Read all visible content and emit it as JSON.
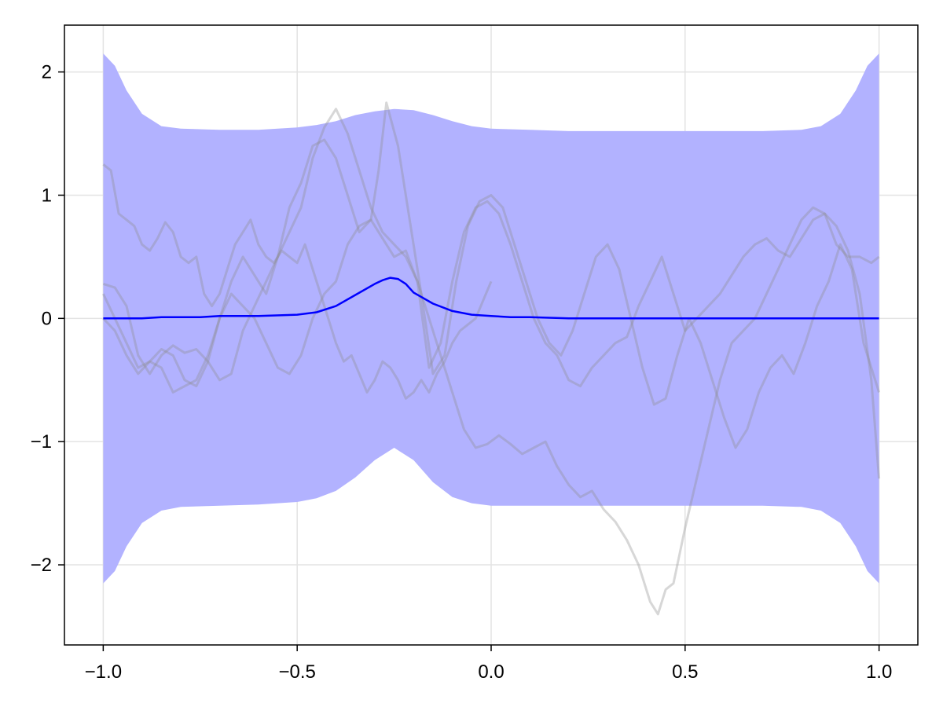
{
  "chart_data": {
    "type": "line",
    "title": "",
    "xlabel": "",
    "ylabel": "",
    "xlim": [
      -1.1,
      1.1
    ],
    "ylim": [
      -2.65,
      2.38
    ],
    "grid": true,
    "x_ticks": [
      -1.0,
      -0.5,
      0.0,
      0.5,
      1.0
    ],
    "x_tick_labels": [
      "−1.0",
      "−0.5",
      "0.0",
      "0.5",
      "1.0"
    ],
    "y_ticks": [
      -2,
      -1,
      0,
      1,
      2
    ],
    "y_tick_labels": [
      "−2",
      "−1",
      "0",
      "1",
      "2"
    ],
    "colors": {
      "mean": "#0000ff",
      "band": "#b2b2ff",
      "samples": "#8c8c8c",
      "grid": "#e3e3e3",
      "axis": "#000000"
    },
    "band": {
      "x": [
        -1.0,
        -0.97,
        -0.94,
        -0.9,
        -0.85,
        -0.8,
        -0.7,
        -0.6,
        -0.5,
        -0.45,
        -0.4,
        -0.35,
        -0.3,
        -0.25,
        -0.2,
        -0.15,
        -0.1,
        -0.05,
        0.0,
        0.1,
        0.2,
        0.3,
        0.4,
        0.5,
        0.6,
        0.7,
        0.8,
        0.85,
        0.9,
        0.94,
        0.97,
        1.0
      ],
      "upper": [
        2.15,
        2.05,
        1.85,
        1.66,
        1.56,
        1.54,
        1.53,
        1.53,
        1.55,
        1.57,
        1.6,
        1.65,
        1.68,
        1.7,
        1.69,
        1.65,
        1.6,
        1.56,
        1.54,
        1.53,
        1.52,
        1.52,
        1.52,
        1.52,
        1.52,
        1.52,
        1.53,
        1.56,
        1.66,
        1.85,
        2.05,
        2.15
      ],
      "lower": [
        -2.15,
        -2.05,
        -1.85,
        -1.66,
        -1.56,
        -1.53,
        -1.52,
        -1.51,
        -1.49,
        -1.46,
        -1.4,
        -1.29,
        -1.15,
        -1.05,
        -1.15,
        -1.33,
        -1.45,
        -1.5,
        -1.52,
        -1.52,
        -1.52,
        -1.52,
        -1.52,
        -1.52,
        -1.52,
        -1.52,
        -1.53,
        -1.56,
        -1.66,
        -1.85,
        -2.05,
        -2.15
      ]
    },
    "series": [
      {
        "x": [
          -1.0,
          -0.95,
          -0.9,
          -0.85,
          -0.8,
          -0.75,
          -0.7,
          -0.6,
          -0.5,
          -0.45,
          -0.4,
          -0.35,
          -0.3,
          -0.28,
          -0.26,
          -0.24,
          -0.22,
          -0.2,
          -0.15,
          -0.1,
          -0.05,
          0.0,
          0.05,
          0.1,
          0.2,
          0.3,
          0.4,
          0.5,
          0.6,
          0.7,
          0.8,
          0.9,
          1.0
        ],
        "y": [
          0.0,
          0.0,
          0.0,
          0.01,
          0.01,
          0.01,
          0.02,
          0.02,
          0.03,
          0.05,
          0.1,
          0.19,
          0.28,
          0.31,
          0.33,
          0.32,
          0.28,
          0.21,
          0.12,
          0.06,
          0.03,
          0.02,
          0.01,
          0.01,
          0.0,
          0.0,
          0.0,
          0.0,
          0.0,
          0.0,
          0.0,
          0.0,
          0.0
        ]
      },
      {
        "x": [
          -1.0,
          -0.98,
          -0.96,
          -0.94,
          -0.92,
          -0.9,
          -0.88,
          -0.86,
          -0.84,
          -0.82,
          -0.8,
          -0.78,
          -0.76,
          -0.74,
          -0.72,
          -0.7,
          -0.68,
          -0.66,
          -0.64,
          -0.62,
          -0.6,
          -0.58,
          -0.56,
          -0.54,
          -0.52,
          -0.5,
          -0.48,
          -0.46,
          -0.44,
          -0.42,
          -0.4,
          -0.38,
          -0.36,
          -0.34,
          -0.32,
          -0.3,
          -0.28,
          -0.26,
          -0.24,
          -0.22,
          -0.2,
          -0.18,
          -0.16,
          -0.14,
          -0.12,
          -0.1,
          -0.08,
          -0.06,
          -0.04,
          -0.02,
          0.0
        ],
        "y": [
          1.25,
          1.2,
          0.85,
          0.8,
          0.75,
          0.6,
          0.55,
          0.65,
          0.78,
          0.7,
          0.5,
          0.45,
          0.5,
          0.2,
          0.1,
          0.2,
          0.4,
          0.6,
          0.7,
          0.8,
          0.6,
          0.5,
          0.45,
          0.55,
          0.5,
          0.45,
          0.6,
          0.4,
          0.2,
          0.0,
          -0.2,
          -0.35,
          -0.3,
          -0.45,
          -0.6,
          -0.5,
          -0.35,
          -0.4,
          -0.5,
          -0.65,
          -0.6,
          -0.5,
          -0.6,
          -0.45,
          -0.35,
          -0.2,
          -0.1,
          -0.05,
          0.0,
          0.15,
          0.3
        ]
      },
      {
        "x": [
          -1.0,
          -0.97,
          -0.94,
          -0.91,
          -0.88,
          -0.85,
          -0.82,
          -0.79,
          -0.76,
          -0.73,
          -0.7,
          -0.67,
          -0.64,
          -0.61,
          -0.58,
          -0.55,
          -0.52,
          -0.49,
          -0.46,
          -0.43,
          -0.4,
          -0.37,
          -0.34,
          -0.31,
          -0.28,
          -0.25,
          -0.22,
          -0.19,
          -0.16,
          -0.13,
          -0.1,
          -0.07,
          -0.04,
          -0.01,
          0.02,
          0.05,
          0.08,
          0.11,
          0.14,
          0.17,
          0.2,
          0.23,
          0.26,
          0.29,
          0.32,
          0.35,
          0.38,
          0.41,
          0.43,
          0.45,
          0.47,
          0.5,
          0.53,
          0.56,
          0.59,
          0.62,
          0.65,
          0.68,
          0.71,
          0.74,
          0.77,
          0.8,
          0.83,
          0.86,
          0.89,
          0.92,
          0.95,
          0.98,
          1.0
        ],
        "y": [
          0.28,
          0.25,
          0.1,
          -0.3,
          -0.45,
          -0.3,
          -0.22,
          -0.28,
          -0.25,
          -0.35,
          -0.5,
          -0.45,
          -0.1,
          0.1,
          0.3,
          0.5,
          0.7,
          0.9,
          1.3,
          1.55,
          1.7,
          1.5,
          1.2,
          0.9,
          0.7,
          0.6,
          0.5,
          0.3,
          0.0,
          -0.3,
          -0.6,
          -0.9,
          -1.05,
          -1.02,
          -0.95,
          -1.02,
          -1.1,
          -1.05,
          -1.0,
          -1.2,
          -1.35,
          -1.45,
          -1.4,
          -1.55,
          -1.65,
          -1.8,
          -2.0,
          -2.3,
          -2.4,
          -2.2,
          -2.15,
          -1.7,
          -1.3,
          -0.9,
          -0.5,
          -0.2,
          -0.1,
          0.0,
          0.2,
          0.4,
          0.6,
          0.8,
          0.9,
          0.85,
          0.6,
          0.5,
          0.5,
          0.45,
          0.5
        ]
      },
      {
        "x": [
          -1.0,
          -0.97,
          -0.94,
          -0.91,
          -0.88,
          -0.85,
          -0.82,
          -0.79,
          -0.76,
          -0.73,
          -0.7,
          -0.67,
          -0.64,
          -0.61,
          -0.58,
          -0.55,
          -0.52,
          -0.49,
          -0.46,
          -0.43,
          -0.4,
          -0.37,
          -0.34,
          -0.31,
          -0.29,
          -0.27,
          -0.24,
          -0.21,
          -0.18,
          -0.15,
          -0.12,
          -0.09,
          -0.06,
          -0.03,
          0.0,
          0.03,
          0.06,
          0.09,
          0.12,
          0.15,
          0.18,
          0.21,
          0.24,
          0.27,
          0.3,
          0.33,
          0.36,
          0.39,
          0.42,
          0.45,
          0.48,
          0.51,
          0.54,
          0.57,
          0.6,
          0.63,
          0.66,
          0.69,
          0.72,
          0.75,
          0.78,
          0.81,
          0.84,
          0.87,
          0.9,
          0.93,
          0.96,
          1.0
        ],
        "y": [
          0.2,
          0.0,
          -0.2,
          -0.4,
          -0.35,
          -0.25,
          -0.3,
          -0.5,
          -0.55,
          -0.35,
          0.0,
          0.3,
          0.5,
          0.35,
          0.2,
          0.5,
          0.9,
          1.1,
          1.4,
          1.45,
          1.3,
          1.0,
          0.7,
          0.8,
          1.2,
          1.75,
          1.4,
          0.8,
          0.2,
          -0.45,
          -0.3,
          0.3,
          0.75,
          0.95,
          1.0,
          0.9,
          0.6,
          0.3,
          0.0,
          -0.2,
          -0.3,
          -0.1,
          0.2,
          0.5,
          0.6,
          0.4,
          0.0,
          -0.4,
          -0.7,
          -0.65,
          -0.3,
          0.0,
          -0.2,
          -0.5,
          -0.8,
          -1.05,
          -0.9,
          -0.6,
          -0.4,
          -0.3,
          -0.45,
          -0.2,
          0.1,
          0.3,
          0.6,
          0.4,
          -0.2,
          -0.6
        ]
      },
      {
        "x": [
          -1.0,
          -0.97,
          -0.94,
          -0.91,
          -0.88,
          -0.85,
          -0.82,
          -0.79,
          -0.76,
          -0.73,
          -0.7,
          -0.67,
          -0.64,
          -0.61,
          -0.58,
          -0.55,
          -0.52,
          -0.49,
          -0.46,
          -0.43,
          -0.4,
          -0.37,
          -0.34,
          -0.31,
          -0.28,
          -0.25,
          -0.22,
          -0.19,
          -0.16,
          -0.13,
          -0.1,
          -0.07,
          -0.04,
          -0.01,
          0.02,
          0.05,
          0.08,
          0.11,
          0.14,
          0.17,
          0.2,
          0.23,
          0.26,
          0.29,
          0.32,
          0.35,
          0.38,
          0.41,
          0.44,
          0.47,
          0.5,
          0.53,
          0.56,
          0.59,
          0.62,
          0.65,
          0.68,
          0.71,
          0.74,
          0.77,
          0.8,
          0.83,
          0.86,
          0.89,
          0.92,
          0.95,
          0.98,
          1.0
        ],
        "y": [
          0.0,
          -0.1,
          -0.3,
          -0.45,
          -0.35,
          -0.4,
          -0.6,
          -0.55,
          -0.5,
          -0.3,
          0.0,
          0.2,
          0.1,
          0.0,
          -0.2,
          -0.4,
          -0.45,
          -0.3,
          0.0,
          0.2,
          0.3,
          0.6,
          0.75,
          0.8,
          0.65,
          0.5,
          0.55,
          0.3,
          -0.4,
          -0.2,
          0.3,
          0.7,
          0.9,
          0.95,
          0.85,
          0.6,
          0.3,
          0.0,
          -0.2,
          -0.3,
          -0.5,
          -0.55,
          -0.4,
          -0.3,
          -0.2,
          -0.15,
          0.1,
          0.3,
          0.5,
          0.2,
          -0.1,
          0.0,
          0.1,
          0.2,
          0.35,
          0.5,
          0.6,
          0.65,
          0.55,
          0.5,
          0.65,
          0.8,
          0.85,
          0.75,
          0.55,
          0.2,
          -0.5,
          -1.3
        ]
      }
    ]
  }
}
